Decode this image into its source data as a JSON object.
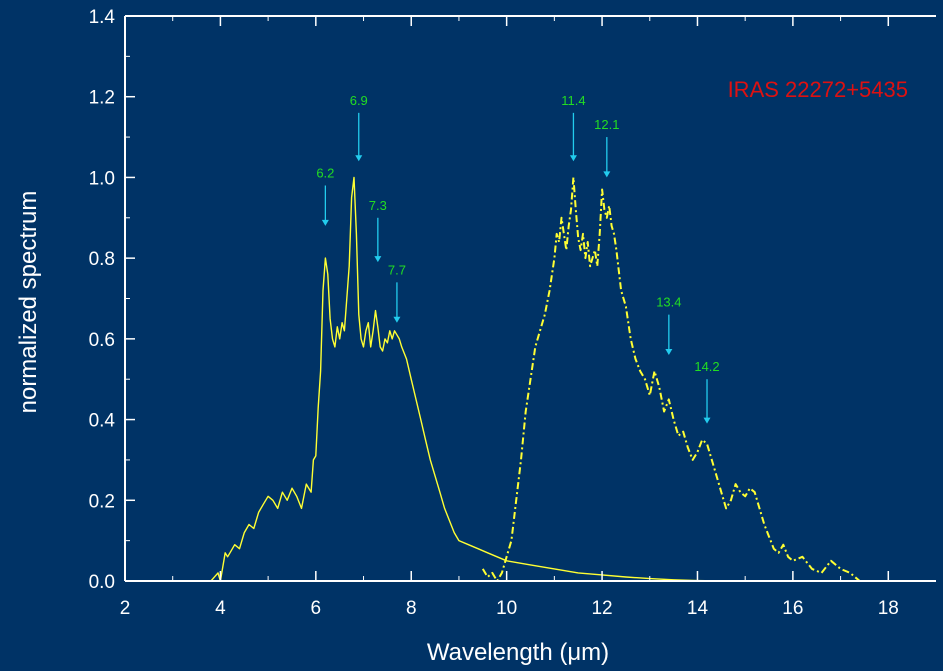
{
  "chart_data": {
    "type": "line",
    "title": "",
    "xlabel": "Wavelength (μm)",
    "ylabel": "normalized spectrum",
    "xlim": [
      2,
      19
    ],
    "ylim": [
      0,
      1.4
    ],
    "xticks": [
      2,
      4,
      6,
      8,
      10,
      12,
      14,
      16,
      18
    ],
    "yticks": [
      0.0,
      0.2,
      0.4,
      0.6,
      0.8,
      1.0,
      1.2,
      1.4
    ],
    "xtick_labels": [
      "2",
      "4",
      "6",
      "8",
      "10",
      "12",
      "14",
      "16",
      "18"
    ],
    "ytick_labels": [
      "0.0",
      "0.2",
      "0.4",
      "0.6",
      "0.8",
      "1.0",
      "1.2",
      "1.4"
    ],
    "grid": false,
    "annotation_text": "IRAS 22272+5435",
    "colors": {
      "background": "#003366",
      "axes": "#ffffff",
      "series": "#ffff33",
      "arrows": "#22ccee",
      "peak_labels": "#22dd22",
      "annotation": "#dd1111"
    },
    "peaks": [
      {
        "label": "6.2",
        "x": 6.2,
        "y_tip": 0.88,
        "y_tail": 0.98
      },
      {
        "label": "6.9",
        "x": 6.9,
        "y_tip": 1.04,
        "y_tail": 1.16
      },
      {
        "label": "7.3",
        "x": 7.3,
        "y_tip": 0.79,
        "y_tail": 0.9
      },
      {
        "label": "7.7",
        "x": 7.7,
        "y_tip": 0.64,
        "y_tail": 0.74
      },
      {
        "label": "11.4",
        "x": 11.4,
        "y_tip": 1.04,
        "y_tail": 1.16
      },
      {
        "label": "12.1",
        "x": 12.1,
        "y_tip": 1.0,
        "y_tail": 1.1
      },
      {
        "label": "13.4",
        "x": 13.4,
        "y_tip": 0.56,
        "y_tail": 0.66
      },
      {
        "label": "14.2",
        "x": 14.2,
        "y_tip": 0.39,
        "y_tail": 0.5
      }
    ],
    "series": [
      {
        "style": "solid",
        "x": [
          3.8,
          3.95,
          4.0,
          4.1,
          4.15,
          4.2,
          4.3,
          4.4,
          4.5,
          4.6,
          4.7,
          4.8,
          4.9,
          5.0,
          5.1,
          5.2,
          5.3,
          5.4,
          5.5,
          5.6,
          5.7,
          5.8,
          5.9,
          5.95,
          6.0,
          6.05,
          6.1,
          6.15,
          6.2,
          6.25,
          6.3,
          6.35,
          6.4,
          6.45,
          6.5,
          6.55,
          6.6,
          6.65,
          6.7,
          6.75,
          6.8,
          6.85,
          6.9,
          6.95,
          7.0,
          7.05,
          7.1,
          7.15,
          7.2,
          7.25,
          7.3,
          7.35,
          7.4,
          7.45,
          7.5,
          7.55,
          7.6,
          7.65,
          7.7,
          7.75,
          7.8,
          7.9,
          8.0,
          8.1,
          8.2,
          8.3,
          8.4,
          8.5,
          8.6,
          8.7,
          8.8,
          8.9,
          9.0,
          9.2,
          9.4,
          9.6,
          9.8,
          10.0,
          10.5,
          11.0,
          11.5,
          12.0,
          12.5,
          13.0,
          13.5,
          14.0,
          14.5
        ],
        "y": [
          0.0,
          0.02,
          0.0,
          0.07,
          0.06,
          0.07,
          0.09,
          0.08,
          0.12,
          0.14,
          0.13,
          0.17,
          0.19,
          0.21,
          0.2,
          0.18,
          0.22,
          0.2,
          0.23,
          0.21,
          0.18,
          0.24,
          0.22,
          0.3,
          0.31,
          0.43,
          0.52,
          0.72,
          0.8,
          0.76,
          0.65,
          0.6,
          0.58,
          0.63,
          0.6,
          0.64,
          0.62,
          0.7,
          0.78,
          0.95,
          1.0,
          0.86,
          0.66,
          0.6,
          0.58,
          0.62,
          0.64,
          0.58,
          0.62,
          0.67,
          0.63,
          0.58,
          0.57,
          0.6,
          0.59,
          0.62,
          0.6,
          0.62,
          0.61,
          0.6,
          0.58,
          0.55,
          0.5,
          0.45,
          0.4,
          0.35,
          0.3,
          0.26,
          0.22,
          0.18,
          0.15,
          0.12,
          0.1,
          0.09,
          0.08,
          0.07,
          0.06,
          0.05,
          0.04,
          0.03,
          0.02,
          0.015,
          0.01,
          0.006,
          0.003,
          0.001,
          0.0
        ]
      },
      {
        "style": "dashdot",
        "x": [
          9.5,
          9.6,
          9.7,
          9.8,
          9.9,
          10.0,
          10.1,
          10.2,
          10.3,
          10.4,
          10.5,
          10.6,
          10.7,
          10.8,
          10.9,
          11.0,
          11.05,
          11.1,
          11.15,
          11.2,
          11.25,
          11.3,
          11.35,
          11.4,
          11.45,
          11.5,
          11.55,
          11.6,
          11.65,
          11.7,
          11.75,
          11.8,
          11.85,
          11.9,
          11.95,
          12.0,
          12.05,
          12.1,
          12.15,
          12.2,
          12.25,
          12.3,
          12.4,
          12.5,
          12.6,
          12.7,
          12.8,
          12.9,
          13.0,
          13.1,
          13.2,
          13.3,
          13.4,
          13.5,
          13.6,
          13.7,
          13.8,
          13.9,
          14.0,
          14.1,
          14.2,
          14.3,
          14.4,
          14.5,
          14.6,
          14.7,
          14.8,
          14.9,
          15.0,
          15.1,
          15.2,
          15.3,
          15.4,
          15.5,
          15.6,
          15.7,
          15.8,
          15.9,
          16.0,
          16.2,
          16.4,
          16.6,
          16.8,
          17.0,
          17.2,
          17.4
        ],
        "y": [
          0.03,
          0.01,
          0.02,
          0.0,
          0.02,
          0.06,
          0.1,
          0.2,
          0.3,
          0.42,
          0.5,
          0.58,
          0.62,
          0.66,
          0.72,
          0.8,
          0.86,
          0.84,
          0.9,
          0.86,
          0.82,
          0.88,
          0.92,
          1.0,
          0.92,
          0.85,
          0.82,
          0.86,
          0.8,
          0.84,
          0.78,
          0.8,
          0.82,
          0.78,
          0.86,
          0.97,
          0.92,
          0.9,
          0.93,
          0.88,
          0.86,
          0.82,
          0.72,
          0.68,
          0.6,
          0.55,
          0.52,
          0.5,
          0.46,
          0.52,
          0.48,
          0.42,
          0.45,
          0.4,
          0.36,
          0.37,
          0.33,
          0.3,
          0.32,
          0.35,
          0.34,
          0.3,
          0.26,
          0.22,
          0.18,
          0.2,
          0.24,
          0.22,
          0.21,
          0.23,
          0.22,
          0.18,
          0.14,
          0.11,
          0.08,
          0.07,
          0.09,
          0.06,
          0.05,
          0.06,
          0.03,
          0.02,
          0.05,
          0.03,
          0.02,
          0.0
        ]
      }
    ]
  }
}
